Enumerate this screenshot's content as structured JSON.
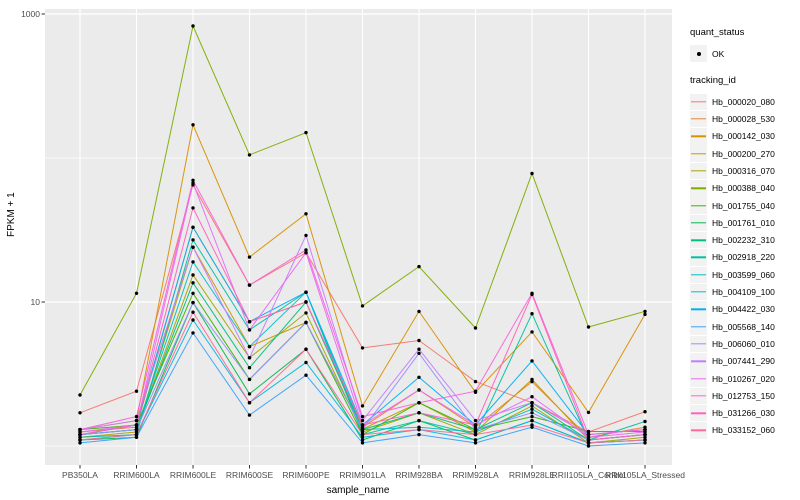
{
  "axes": {
    "x_title": "sample_name",
    "y_title": "FPKM + 1",
    "y_tick_labels": [
      "1000",
      "10"
    ]
  },
  "legend": {
    "quant_status_title": "quant_status",
    "quant_status_ok_label": "OK",
    "tracking_id_title": "tracking_id"
  },
  "chart_data": {
    "type": "line",
    "title": "",
    "xlabel": "sample_name",
    "ylabel": "FPKM + 1",
    "y_scale": "log10",
    "ylim": [
      0.9,
      1100
    ],
    "y_major_ticks": [
      10,
      1000
    ],
    "y_minor_gridlines": [
      1,
      100
    ],
    "grid": "on",
    "legend_position": "right",
    "panel_background": "#EBEBEB",
    "gridline_color": "#FFFFFF",
    "point_marker": {
      "shape": "circle",
      "color": "#000000",
      "legend_label": "OK"
    },
    "categories": [
      "PB350LA",
      "RRIM600LA",
      "RRIM600LE",
      "RRIM600SE",
      "RRIM600PE",
      "RRIM901LA",
      "RRIM928BA",
      "RRIM928LA",
      "RRIM928LE",
      "RRII105LA_Control",
      "RRII105LA_Stressed"
    ],
    "series": [
      {
        "name": "Hb_000020_080",
        "color": "#F8766D",
        "values": [
          1.7,
          2.4,
          65,
          13.1,
          22,
          4.8,
          5.4,
          2.8,
          2.0,
          1.25,
          1.73
        ]
      },
      {
        "name": "Hb_000028_530",
        "color": "#EA8331",
        "values": [
          1.25,
          1.35,
          33,
          7.3,
          10,
          1.35,
          2.45,
          1.35,
          2.8,
          1.15,
          1.35
        ]
      },
      {
        "name": "Hb_000142_030",
        "color": "#D89000",
        "values": [
          1.3,
          1.5,
          170,
          20.5,
          41,
          1.9,
          8.6,
          2.36,
          6.2,
          1.71,
          8.2
        ]
      },
      {
        "name": "Hb_000200_270",
        "color": "#C09B00",
        "values": [
          1.15,
          1.25,
          24,
          4.9,
          7.2,
          1.31,
          2.0,
          1.25,
          2.9,
          1.1,
          1.2
        ]
      },
      {
        "name": "Hb_000316_070",
        "color": "#A3A500",
        "values": [
          1.2,
          1.3,
          15.4,
          4.1,
          8.4,
          1.25,
          1.7,
          1.2,
          1.9,
          1.05,
          1.15
        ]
      },
      {
        "name": "Hb_000388_040",
        "color": "#7CAE00",
        "values": [
          2.26,
          11.5,
          825,
          105,
          150,
          9.4,
          17.6,
          6.6,
          78,
          6.7,
          8.6
        ]
      },
      {
        "name": "Hb_001755_040",
        "color": "#39B600",
        "values": [
          1.3,
          1.4,
          11.5,
          2.9,
          7.2,
          1.2,
          2.0,
          1.3,
          1.6,
          1.26,
          1.26
        ]
      },
      {
        "name": "Hb_001761_010",
        "color": "#00BB4E",
        "values": [
          1.1,
          1.15,
          9.9,
          2.3,
          4.7,
          1.1,
          1.5,
          1.1,
          1.5,
          1.05,
          1.1
        ]
      },
      {
        "name": "Hb_002232_310",
        "color": "#00BF7D",
        "values": [
          1.2,
          1.3,
          13.6,
          3.5,
          10,
          1.3,
          1.7,
          1.3,
          2.0,
          1.1,
          1.2
        ]
      },
      {
        "name": "Hb_002918_220",
        "color": "#00C1A3",
        "values": [
          1.15,
          1.2,
          27,
          6.4,
          11.7,
          1.2,
          1.5,
          1.2,
          8.3,
          1.1,
          1.48
        ]
      },
      {
        "name": "Hb_003599_060",
        "color": "#00BFC4",
        "values": [
          1.2,
          1.3,
          19,
          4.9,
          11.7,
          1.3,
          1.35,
          1.25,
          1.8,
          1.1,
          1.2
        ]
      },
      {
        "name": "Hb_004109_100",
        "color": "#00BAE0",
        "values": [
          1.1,
          1.2,
          7.5,
          2.0,
          3.8,
          1.15,
          1.3,
          1.1,
          1.5,
          1.05,
          1.1
        ]
      },
      {
        "name": "Hb_004422_030",
        "color": "#00B0F6",
        "values": [
          1.2,
          1.4,
          33,
          7.3,
          11.7,
          1.4,
          3.0,
          1.4,
          3.9,
          1.2,
          1.3
        ]
      },
      {
        "name": "Hb_005568_140",
        "color": "#35A2FF",
        "values": [
          1.05,
          1.15,
          6.1,
          1.64,
          3.1,
          1.05,
          1.2,
          1.05,
          1.35,
          1.0,
          1.05
        ]
      },
      {
        "name": "Hb_006060_010",
        "color": "#9590FF",
        "values": [
          1.2,
          1.3,
          9.9,
          2.9,
          7.2,
          1.3,
          4.4,
          1.3,
          1.7,
          1.1,
          1.2
        ]
      },
      {
        "name": "Hb_007441_290",
        "color": "#C77CFF",
        "values": [
          1.3,
          1.5,
          24,
          4.1,
          29,
          1.5,
          4.7,
          1.5,
          2.0,
          1.2,
          1.3
        ]
      },
      {
        "name": "Hb_010267_020",
        "color": "#E76BF3",
        "values": [
          1.25,
          1.4,
          67,
          6.4,
          22,
          1.4,
          2.45,
          1.4,
          2.2,
          1.15,
          1.25
        ]
      },
      {
        "name": "Hb_012753_150",
        "color": "#FA62DB",
        "values": [
          1.3,
          1.6,
          70,
          13.1,
          23,
          1.6,
          2.0,
          2.4,
          11.5,
          1.2,
          1.3
        ]
      },
      {
        "name": "Hb_031266_030",
        "color": "#FF62BC",
        "values": [
          1.2,
          1.4,
          45,
          7.3,
          10,
          1.4,
          1.7,
          1.4,
          11.3,
          1.1,
          1.2
        ]
      },
      {
        "name": "Hb_033152_060",
        "color": "#FF6A98",
        "values": [
          1.1,
          1.2,
          8.5,
          2.0,
          4.7,
          1.2,
          1.3,
          1.2,
          1.4,
          1.05,
          1.1
        ]
      }
    ]
  }
}
